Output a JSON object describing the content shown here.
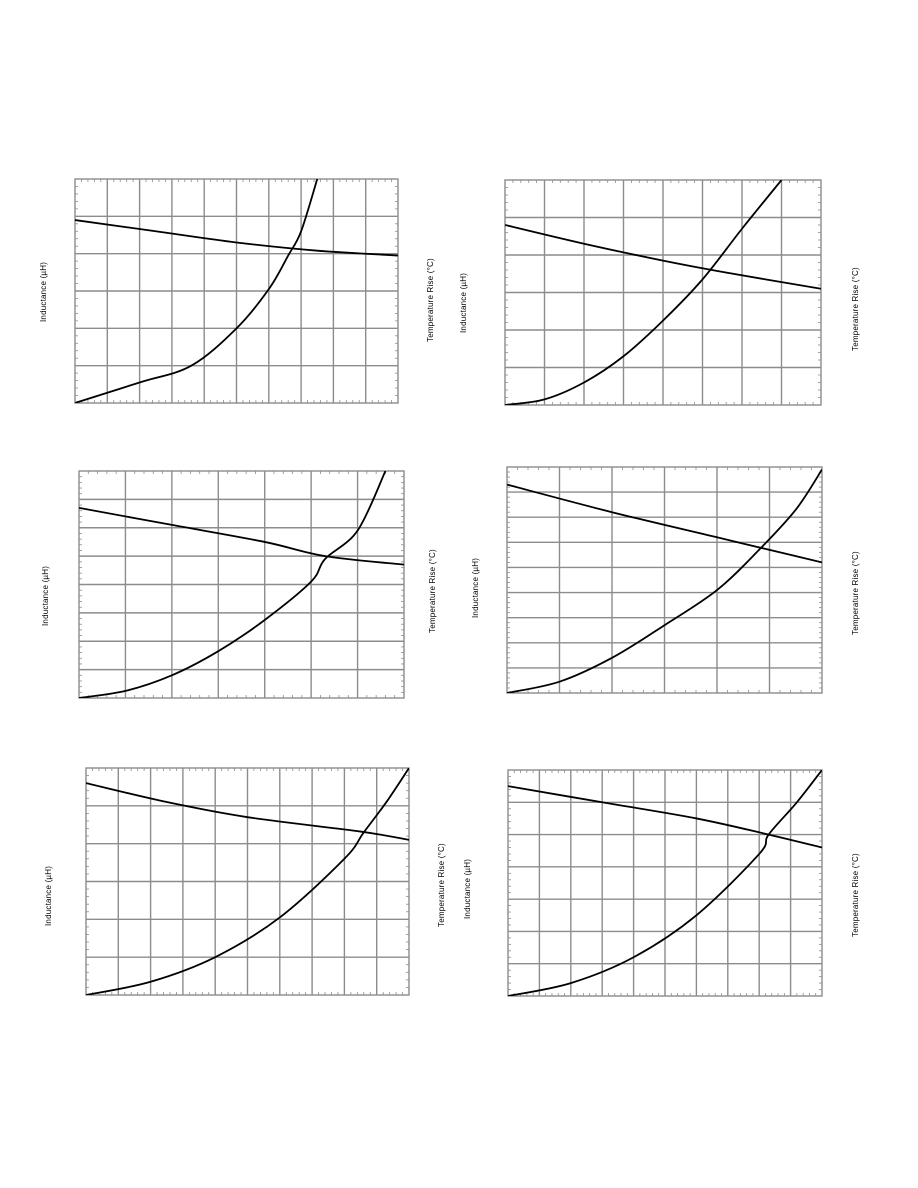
{
  "colors": {
    "grid": "#8c8c8c",
    "frame": "#8c8c8c",
    "curve": "#000000",
    "background": "#ffffff"
  },
  "chart_data": [
    {
      "type": "line",
      "ylabel": "Inductance (µH)",
      "y2label": "Temperature Rise (°C)",
      "xlim": [
        0,
        10
      ],
      "ylim": [
        0,
        6
      ],
      "x_divisions": 10,
      "y_divisions": 6,
      "minor_ticks": 5,
      "series": [
        {
          "x": [
            0,
            2.5,
            5,
            7.5,
            10
          ],
          "y": [
            4.9,
            4.6,
            4.3,
            4.08,
            3.95
          ]
        },
        {
          "x": [
            0,
            2,
            3.6,
            5,
            6,
            6.6,
            7.0,
            7.5
          ],
          "y": [
            0,
            0.55,
            1.0,
            2.0,
            3.05,
            3.95,
            4.6,
            6.0
          ]
        }
      ]
    },
    {
      "type": "line",
      "ylabel": "Inductance (µH)",
      "y2label": "Temperature Rise (°C)",
      "xlim": [
        0,
        8
      ],
      "ylim": [
        0,
        6
      ],
      "x_divisions": 8,
      "y_divisions": 6,
      "minor_ticks": 5,
      "series": [
        {
          "x": [
            0,
            2,
            4,
            5.5,
            8
          ],
          "y": [
            4.8,
            4.3,
            3.85,
            3.55,
            3.1
          ]
        },
        {
          "x": [
            0,
            1,
            2,
            3,
            4,
            5,
            6,
            7
          ],
          "y": [
            0,
            0.15,
            0.6,
            1.3,
            2.25,
            3.35,
            4.7,
            6.0
          ]
        }
      ]
    },
    {
      "type": "line",
      "ylabel": "Inductance (µH)",
      "y2label": "Temperature Rise (°C)",
      "xlim": [
        0,
        7
      ],
      "ylim": [
        0,
        8
      ],
      "x_divisions": 7,
      "y_divisions": 8,
      "minor_ticks": 5,
      "series": [
        {
          "x": [
            0,
            2,
            4,
            5.3,
            7
          ],
          "y": [
            6.7,
            6.1,
            5.5,
            5.0,
            4.7
          ]
        },
        {
          "x": [
            0,
            1,
            2,
            3,
            4,
            5,
            5.3,
            6,
            6.6
          ],
          "y": [
            0,
            0.25,
            0.8,
            1.65,
            2.75,
            4.1,
            4.9,
            5.9,
            8.0
          ]
        }
      ]
    },
    {
      "type": "line",
      "ylabel": "Inductance (µH)",
      "y2label": "Temperature Rise (°C)",
      "xlim": [
        0,
        6
      ],
      "ylim": [
        0,
        9
      ],
      "x_divisions": 6,
      "y_divisions": 9,
      "minor_ticks": 5,
      "series": [
        {
          "x": [
            0,
            2,
            4,
            4.8,
            6
          ],
          "y": [
            8.3,
            7.2,
            6.2,
            5.8,
            5.2
          ]
        },
        {
          "x": [
            0,
            1,
            2,
            3,
            4,
            4.8,
            5.5,
            6
          ],
          "y": [
            0,
            0.45,
            1.4,
            2.7,
            4.1,
            5.7,
            7.3,
            8.9
          ]
        }
      ]
    },
    {
      "type": "line",
      "ylabel": "Inductance (µH)",
      "y2label": "Temperature Rise (°C)",
      "xlim": [
        0,
        10
      ],
      "ylim": [
        0,
        6
      ],
      "x_divisions": 10,
      "y_divisions": 6,
      "minor_ticks": 5,
      "series": [
        {
          "x": [
            0,
            2.5,
            5,
            8.5,
            10
          ],
          "y": [
            5.6,
            5.1,
            4.7,
            4.32,
            4.1
          ]
        },
        {
          "x": [
            0,
            2,
            4,
            6,
            8,
            8.6,
            9.3,
            10
          ],
          "y": [
            0,
            0.35,
            1.0,
            2.05,
            3.6,
            4.3,
            5.1,
            6.0
          ]
        }
      ]
    },
    {
      "type": "line",
      "ylabel": "Inductance (µH)",
      "y2label": "Temperature Rise (°C)",
      "xlim": [
        0,
        10
      ],
      "ylim": [
        0,
        7
      ],
      "x_divisions": 10,
      "y_divisions": 7,
      "minor_ticks": 5,
      "series": [
        {
          "x": [
            0,
            3,
            6,
            8.3,
            10
          ],
          "y": [
            6.5,
            6.0,
            5.5,
            5.0,
            4.6
          ]
        },
        {
          "x": [
            0,
            2,
            4,
            6,
            8,
            8.3,
            9.2,
            10
          ],
          "y": [
            0,
            0.4,
            1.2,
            2.5,
            4.4,
            5.0,
            6.0,
            7.0
          ]
        }
      ]
    }
  ]
}
